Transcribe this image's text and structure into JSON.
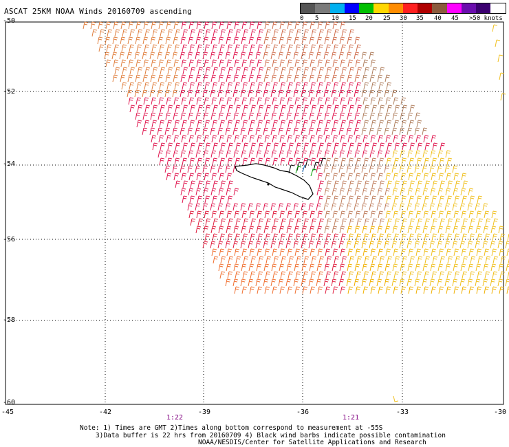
{
  "title": "ASCAT 25KM NOAA Winds 20160709 ascending",
  "legend": {
    "labels": [
      "0",
      "5",
      "10",
      "15",
      "20",
      "25",
      "30",
      "35",
      "40",
      "45",
      ">50 knots"
    ],
    "colors": [
      "#555555",
      "#7a7a7a",
      "#00b0f0",
      "#0000ff",
      "#00c000",
      "#ffd700",
      "#ff8c00",
      "#ff2020",
      "#b00000",
      "#8b5a3c",
      "#ff00ff",
      "#6a0dad",
      "#3b0070"
    ]
  },
  "axes": {
    "lat_labels": [
      "-50",
      "-52",
      "-54",
      "-56",
      "-58",
      "-60"
    ],
    "lon_labels": [
      "-45",
      "-42",
      "-39",
      "-36",
      "-33",
      "-30"
    ],
    "pass_times": [
      "1:22",
      "1:21"
    ]
  },
  "notes": {
    "line1": "Note: 1) Times are GMT 2)Times along bottom correspond to measurement at -55S",
    "line2": "3)Data buffer is 22 hrs from 20160709 4) Black wind barbs indicate possible contamination",
    "credit": "NOAA/NESDIS/Center for Satellite Applications and Research"
  }
}
